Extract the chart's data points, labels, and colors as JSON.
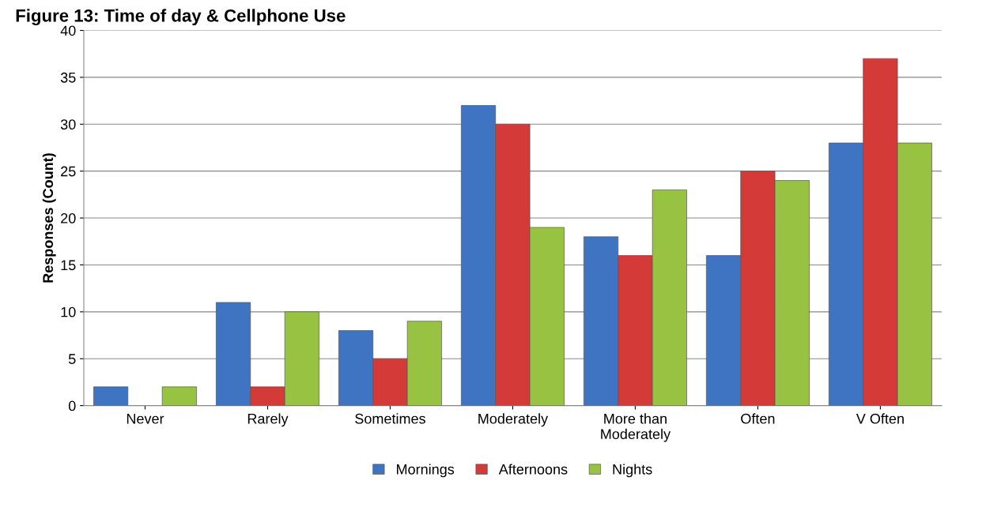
{
  "chart_data": {
    "type": "bar",
    "title": "Figure 13: Time of day & Cellphone Use",
    "ylabel": "Responses (Count)",
    "categories": [
      "Never",
      "Rarely",
      "Sometimes",
      "Moderately",
      "More than\nModerately",
      "Often",
      "V Often"
    ],
    "series": [
      {
        "name": "Mornings",
        "color": "#3f74c2",
        "values": [
          2,
          11,
          8,
          32,
          18,
          16,
          28
        ]
      },
      {
        "name": "Afternoons",
        "color": "#d33a38",
        "values": [
          null,
          2,
          5,
          30,
          16,
          25,
          37
        ]
      },
      {
        "name": "Nights",
        "color": "#98c241",
        "values": [
          2,
          10,
          9,
          19,
          23,
          24,
          28
        ]
      }
    ],
    "ylim": [
      0,
      40
    ],
    "yticks": [
      0,
      5,
      10,
      15,
      20,
      25,
      30,
      35,
      40
    ],
    "grid": "y",
    "legend": "bottom"
  }
}
